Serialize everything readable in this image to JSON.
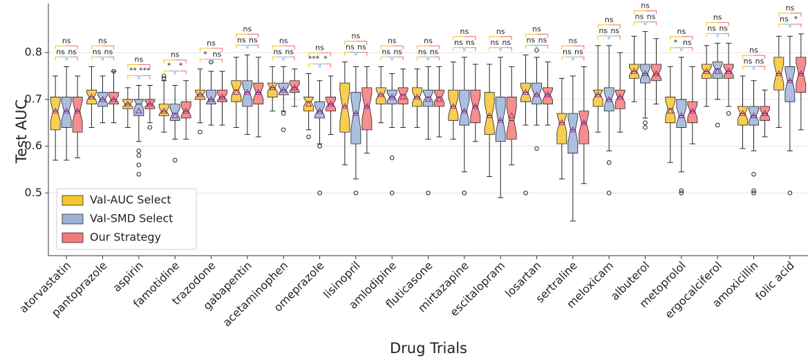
{
  "chart_data": {
    "type": "boxplot",
    "y_label": "Test AUC",
    "x_label": "Drug Trials",
    "ylim": [
      0.366,
      0.905
    ],
    "yticks": [
      0.5,
      0.6,
      0.7,
      0.8
    ],
    "grid": true,
    "legend": "lower left",
    "categories": [
      "atorvastatin",
      "pantoprazole",
      "aspirin",
      "famotidine",
      "trazodone",
      "gabapentin",
      "acetaminophen",
      "omeprazole",
      "lisinopril",
      "amlodipine",
      "fluticasone",
      "mirtazapine",
      "escitalopram",
      "losartan",
      "sertraline",
      "meloxicam",
      "albuterol",
      "metoprolol",
      "ergocalciferol",
      "amoxicillin",
      "folic acid"
    ],
    "stats_order": [
      "whislo",
      "q1",
      "med",
      "q3",
      "whishi",
      "mean"
    ],
    "series": [
      {
        "name": "Val-AUC Select",
        "color": "#f7c631",
        "stats": [
          [
            0.57,
            0.635,
            0.675,
            0.705,
            0.75,
            0.675
          ],
          [
            0.64,
            0.69,
            0.705,
            0.72,
            0.77,
            0.705
          ],
          [
            0.64,
            0.68,
            0.69,
            0.7,
            0.725,
            0.69
          ],
          [
            0.63,
            0.665,
            0.675,
            0.69,
            0.74,
            0.675
          ],
          [
            0.65,
            0.7,
            0.71,
            0.72,
            0.765,
            0.71
          ],
          [
            0.64,
            0.695,
            0.72,
            0.74,
            0.79,
            0.715
          ],
          [
            0.675,
            0.705,
            0.725,
            0.735,
            0.77,
            0.725
          ],
          [
            0.635,
            0.675,
            0.695,
            0.705,
            0.755,
            0.69
          ],
          [
            0.56,
            0.63,
            0.685,
            0.735,
            0.78,
            0.685
          ],
          [
            0.65,
            0.69,
            0.71,
            0.725,
            0.77,
            0.71
          ],
          [
            0.64,
            0.685,
            0.705,
            0.725,
            0.765,
            0.705
          ],
          [
            0.615,
            0.655,
            0.685,
            0.72,
            0.78,
            0.685
          ],
          [
            0.535,
            0.625,
            0.665,
            0.715,
            0.775,
            0.665
          ],
          [
            0.645,
            0.695,
            0.715,
            0.735,
            0.795,
            0.715
          ],
          [
            0.53,
            0.605,
            0.65,
            0.67,
            0.745,
            0.65
          ],
          [
            0.63,
            0.685,
            0.71,
            0.72,
            0.815,
            0.71
          ],
          [
            0.695,
            0.745,
            0.76,
            0.775,
            0.835,
            0.76
          ],
          [
            0.565,
            0.65,
            0.68,
            0.705,
            0.77,
            0.675
          ],
          [
            0.685,
            0.745,
            0.76,
            0.775,
            0.815,
            0.76
          ],
          [
            0.595,
            0.645,
            0.67,
            0.685,
            0.75,
            0.67
          ],
          [
            0.64,
            0.72,
            0.755,
            0.79,
            0.835,
            0.755
          ]
        ],
        "fliers": [
          [],
          [],
          [],
          [
            0.75,
            0.745
          ],
          [
            0.63
          ],
          [],
          [],
          [
            0.62
          ],
          [],
          [],
          [],
          [],
          [],
          [
            0.5
          ],
          [],
          [],
          [],
          [],
          [],
          [],
          []
        ]
      },
      {
        "name": "Val-SMD Select",
        "color": "#9db4d9",
        "stats": [
          [
            0.57,
            0.64,
            0.675,
            0.705,
            0.77,
            0.675
          ],
          [
            0.65,
            0.685,
            0.7,
            0.715,
            0.75,
            0.7
          ],
          [
            0.61,
            0.665,
            0.69,
            0.7,
            0.73,
            0.675
          ],
          [
            0.615,
            0.655,
            0.67,
            0.69,
            0.73,
            0.665
          ],
          [
            0.645,
            0.69,
            0.7,
            0.72,
            0.76,
            0.7
          ],
          [
            0.625,
            0.685,
            0.715,
            0.74,
            0.795,
            0.715
          ],
          [
            0.675,
            0.71,
            0.72,
            0.735,
            0.77,
            0.72
          ],
          [
            0.605,
            0.66,
            0.675,
            0.695,
            0.74,
            0.675
          ],
          [
            0.53,
            0.605,
            0.67,
            0.715,
            0.77,
            0.67
          ],
          [
            0.64,
            0.69,
            0.705,
            0.72,
            0.755,
            0.705
          ],
          [
            0.615,
            0.685,
            0.705,
            0.72,
            0.77,
            0.7
          ],
          [
            0.545,
            0.645,
            0.675,
            0.72,
            0.79,
            0.675
          ],
          [
            0.49,
            0.61,
            0.655,
            0.705,
            0.79,
            0.655
          ],
          [
            0.645,
            0.69,
            0.71,
            0.735,
            0.79,
            0.71
          ],
          [
            0.44,
            0.585,
            0.635,
            0.67,
            0.75,
            0.635
          ],
          [
            0.59,
            0.675,
            0.7,
            0.725,
            0.815,
            0.7
          ],
          [
            0.66,
            0.735,
            0.755,
            0.775,
            0.845,
            0.755
          ],
          [
            0.545,
            0.64,
            0.665,
            0.7,
            0.79,
            0.665
          ],
          [
            0.7,
            0.745,
            0.765,
            0.78,
            0.82,
            0.76
          ],
          [
            0.59,
            0.645,
            0.665,
            0.685,
            0.74,
            0.665
          ],
          [
            0.59,
            0.695,
            0.74,
            0.77,
            0.835,
            0.74
          ]
        ],
        "fliers": [
          [],
          [],
          [
            0.59,
            0.58,
            0.56,
            0.54
          ],
          [
            0.57
          ],
          [
            0.78
          ],
          [],
          [
            0.67,
            0.635
          ],
          [
            0.6,
            0.5
          ],
          [
            0.5
          ],
          [
            0.575,
            0.5
          ],
          [
            0.5
          ],
          [
            0.5
          ],
          [],
          [
            0.805,
            0.595
          ],
          [],
          [
            0.565,
            0.5
          ],
          [
            0.65,
            0.64
          ],
          [
            0.505,
            0.5
          ],
          [
            0.645
          ],
          [
            0.54,
            0.505,
            0.5
          ],
          [
            0.5
          ]
        ]
      },
      {
        "name": "Our Strategy",
        "color": "#f47a7a",
        "stats": [
          [
            0.575,
            0.63,
            0.675,
            0.705,
            0.75,
            0.675
          ],
          [
            0.65,
            0.69,
            0.7,
            0.715,
            0.76,
            0.7
          ],
          [
            0.65,
            0.68,
            0.69,
            0.7,
            0.73,
            0.69
          ],
          [
            0.615,
            0.66,
            0.675,
            0.695,
            0.74,
            0.675
          ],
          [
            0.645,
            0.695,
            0.705,
            0.72,
            0.76,
            0.705
          ],
          [
            0.62,
            0.69,
            0.715,
            0.735,
            0.79,
            0.715
          ],
          [
            0.685,
            0.715,
            0.725,
            0.74,
            0.765,
            0.725
          ],
          [
            0.625,
            0.675,
            0.69,
            0.705,
            0.75,
            0.69
          ],
          [
            0.585,
            0.635,
            0.685,
            0.725,
            0.77,
            0.685
          ],
          [
            0.64,
            0.69,
            0.71,
            0.725,
            0.765,
            0.705
          ],
          [
            0.62,
            0.685,
            0.705,
            0.72,
            0.77,
            0.7
          ],
          [
            0.61,
            0.65,
            0.685,
            0.72,
            0.775,
            0.685
          ],
          [
            0.56,
            0.615,
            0.655,
            0.705,
            0.77,
            0.665
          ],
          [
            0.645,
            0.69,
            0.71,
            0.725,
            0.78,
            0.71
          ],
          [
            0.52,
            0.605,
            0.65,
            0.675,
            0.77,
            0.65
          ],
          [
            0.63,
            0.68,
            0.705,
            0.72,
            0.8,
            0.705
          ],
          [
            0.69,
            0.74,
            0.755,
            0.775,
            0.83,
            0.755
          ],
          [
            0.605,
            0.65,
            0.675,
            0.695,
            0.77,
            0.675
          ],
          [
            0.685,
            0.745,
            0.76,
            0.775,
            0.82,
            0.76
          ],
          [
            0.62,
            0.655,
            0.67,
            0.685,
            0.72,
            0.67
          ],
          [
            0.635,
            0.715,
            0.755,
            0.79,
            0.84,
            0.755
          ]
        ],
        "fliers": [
          [],
          [
            0.76
          ],
          [
            0.64
          ],
          [],
          [],
          [],
          [],
          [],
          [],
          [],
          [],
          [],
          [],
          [],
          [],
          [],
          [],
          [],
          [
            0.67
          ],
          [],
          []
        ]
      }
    ],
    "significance": [
      [
        "ns",
        "ns",
        "ns"
      ],
      [
        "ns",
        "ns",
        "ns"
      ],
      [
        "ns",
        "**",
        "***"
      ],
      [
        "ns",
        "*",
        "*"
      ],
      [
        "ns",
        "*",
        "ns"
      ],
      [
        "ns",
        "ns",
        "ns"
      ],
      [
        "ns",
        "ns",
        "ns"
      ],
      [
        "ns",
        "***",
        "*"
      ],
      [
        "ns",
        "ns",
        "ns"
      ],
      [
        "ns",
        "ns",
        "ns"
      ],
      [
        "ns",
        "ns",
        "ns"
      ],
      [
        "ns",
        "ns",
        "ns"
      ],
      [
        "ns",
        "ns",
        "ns"
      ],
      [
        "ns",
        "ns",
        "ns"
      ],
      [
        "ns",
        "ns",
        "ns"
      ],
      [
        "ns",
        "ns",
        "ns"
      ],
      [
        "ns",
        "ns",
        "ns"
      ],
      [
        "ns",
        "*",
        "ns"
      ],
      [
        "ns",
        "ns",
        "ns"
      ],
      [
        "ns",
        "ns",
        "ns"
      ],
      [
        "ns",
        "ns",
        "*"
      ]
    ]
  }
}
